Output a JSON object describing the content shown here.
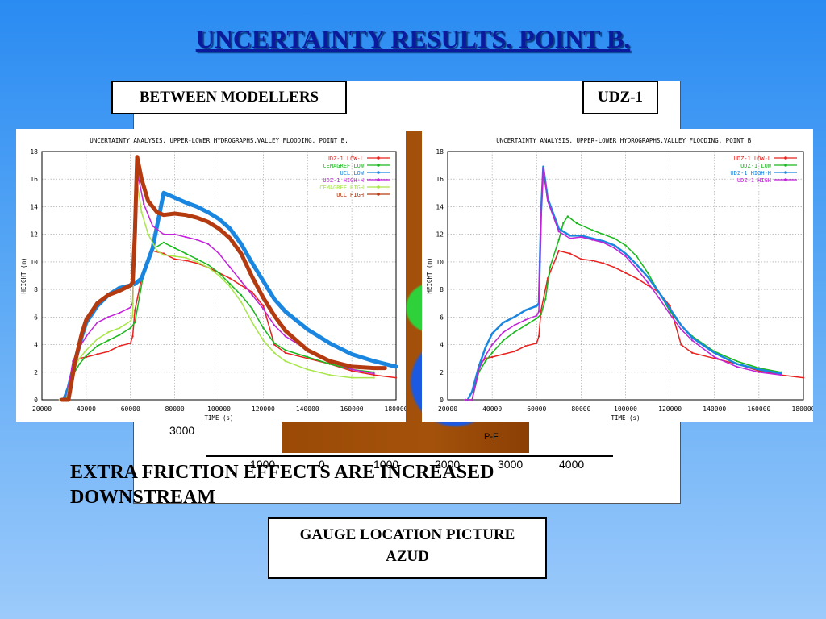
{
  "slide": {
    "title": "UNCERTAINTY RESULTS. POINT B.",
    "label_between": "BETWEEN MODELLERS",
    "label_udz": "UDZ-1",
    "note": "EXTRA FRICTION EFFECTS ARE INCREASED DOWNSTREAM",
    "gauge_label_line1": "GAUGE LOCATION PICTURE",
    "gauge_label_line2": "AZUD"
  },
  "map": {
    "y_label": "3000",
    "gauge_tag": "P-F",
    "x_ticks": [
      "1000",
      "0",
      "1000",
      "2000",
      "3000",
      "4000"
    ]
  },
  "colors": {
    "background_top": "#2a8bf2",
    "background_bottom": "#9ccafb",
    "title": "#0b1a9c"
  },
  "chart_data": [
    {
      "type": "line",
      "title": "UNCERTAINTY ANALYSIS. UPPER-LOWER HYDROGRAPHS.VALLEY FLOODING. POINT B.",
      "xlabel": "TIME (s)",
      "ylabel": "HEIGHT (m)",
      "xlim": [
        20000,
        180000
      ],
      "ylim": [
        0,
        18
      ],
      "xticks": [
        20000,
        40000,
        60000,
        80000,
        100000,
        120000,
        140000,
        160000,
        180000
      ],
      "yticks": [
        0,
        2,
        4,
        6,
        8,
        10,
        12,
        14,
        16,
        18
      ],
      "grid": true,
      "legend_position": "top-right",
      "series": [
        {
          "name": "UDZ-1 LOW-L",
          "color": "#e8211f",
          "width": 1.5,
          "x": [
            28000,
            31000,
            34000,
            37000,
            40000,
            45000,
            50000,
            55000,
            60000,
            61000,
            62000,
            65000,
            70000,
            75000,
            80000,
            85000,
            90000,
            95000,
            100000,
            105000,
            110000,
            115000,
            120000,
            125000,
            130000,
            140000,
            150000,
            160000,
            170000,
            180000
          ],
          "y": [
            0,
            0,
            2.5,
            3,
            3.1,
            3.3,
            3.5,
            3.9,
            4.1,
            4.6,
            6.5,
            8.8,
            10.8,
            10.6,
            10.2,
            10.1,
            9.9,
            9.6,
            9.2,
            8.8,
            8.3,
            7.8,
            6.8,
            4.0,
            3.4,
            3.0,
            2.6,
            2.1,
            1.8,
            1.6
          ]
        },
        {
          "name": "CEMAGREF LOW",
          "color": "#18b81c",
          "width": 1.5,
          "x": [
            28000,
            31000,
            34000,
            37000,
            40000,
            45000,
            50000,
            55000,
            60000,
            62000,
            64000,
            66000,
            70000,
            75000,
            80000,
            85000,
            90000,
            95000,
            100000,
            105000,
            110000,
            115000,
            120000,
            125000,
            130000,
            140000,
            150000,
            160000,
            170000
          ],
          "y": [
            0,
            0,
            1.8,
            2.6,
            3.2,
            3.9,
            4.3,
            4.7,
            5.2,
            5.6,
            7.4,
            9.2,
            10.9,
            11.4,
            11.0,
            10.6,
            10.2,
            9.8,
            9.2,
            8.4,
            7.6,
            6.6,
            5.2,
            4.1,
            3.6,
            3.1,
            2.6,
            2.2,
            2.0
          ]
        },
        {
          "name": "UCL LOW",
          "color": "#1a86e0",
          "width": 5,
          "x": [
            30000,
            32000,
            35000,
            38000,
            40000,
            45000,
            50000,
            55000,
            60000,
            62000,
            65000,
            70000,
            75000,
            78000,
            85000,
            90000,
            95000,
            100000,
            105000,
            110000,
            115000,
            120000,
            125000,
            130000,
            140000,
            150000,
            160000,
            170000,
            180000
          ],
          "y": [
            0,
            0.8,
            2.8,
            4.6,
            5.6,
            6.8,
            7.6,
            8.1,
            8.3,
            8.4,
            8.8,
            11.0,
            15.0,
            14.8,
            14.3,
            14.0,
            13.6,
            13.1,
            12.4,
            11.3,
            9.9,
            8.6,
            7.3,
            6.4,
            5.1,
            4.1,
            3.3,
            2.8,
            2.4
          ]
        },
        {
          "name": "UDZ-1 HIGH-H",
          "color": "#c023d8",
          "width": 1.5,
          "x": [
            28000,
            31000,
            34000,
            37000,
            40000,
            45000,
            50000,
            55000,
            60000,
            61000,
            62000,
            63000,
            66000,
            70000,
            75000,
            80000,
            85000,
            90000,
            95000,
            100000,
            105000,
            110000,
            115000,
            120000,
            125000,
            130000,
            140000,
            150000,
            160000,
            170000
          ],
          "y": [
            0,
            0,
            2.8,
            3.8,
            4.6,
            5.6,
            6.0,
            6.3,
            6.7,
            7.0,
            13.5,
            16.6,
            14.2,
            12.6,
            12.0,
            12.0,
            11.8,
            11.6,
            11.3,
            10.6,
            9.6,
            8.6,
            7.6,
            6.6,
            5.4,
            4.6,
            3.6,
            2.8,
            2.2,
            1.9
          ]
        },
        {
          "name": "CEMAGREF HIGH",
          "color": "#a8e64a",
          "width": 1.5,
          "x": [
            28000,
            31000,
            34000,
            37000,
            40000,
            45000,
            50000,
            55000,
            60000,
            61000,
            62000,
            63000,
            65000,
            68000,
            72000,
            75000,
            80000,
            85000,
            90000,
            95000,
            100000,
            105000,
            110000,
            115000,
            120000,
            125000,
            130000,
            140000,
            150000,
            160000,
            170000
          ],
          "y": [
            0,
            0,
            2.2,
            3.0,
            3.6,
            4.4,
            4.9,
            5.2,
            5.7,
            6.1,
            13.4,
            15.8,
            13.6,
            12.0,
            10.8,
            10.5,
            10.4,
            10.3,
            10.0,
            9.6,
            9.0,
            8.2,
            7.1,
            5.6,
            4.3,
            3.4,
            2.8,
            2.2,
            1.8,
            1.6,
            1.6
          ]
        },
        {
          "name": "UCL HIGH",
          "color": "#b43a10",
          "width": 5,
          "x": [
            29000,
            31000,
            32000,
            35000,
            38000,
            40000,
            45000,
            50000,
            55000,
            60000,
            61000,
            62000,
            63000,
            65000,
            68000,
            72000,
            75000,
            80000,
            85000,
            90000,
            95000,
            100000,
            105000,
            110000,
            115000,
            120000,
            125000,
            130000,
            140000,
            150000,
            160000,
            170000,
            175000
          ],
          "y": [
            0,
            0,
            0,
            2.8,
            4.8,
            5.8,
            7.0,
            7.6,
            7.9,
            8.3,
            8.5,
            12.0,
            17.6,
            16.0,
            14.4,
            13.6,
            13.4,
            13.5,
            13.4,
            13.2,
            12.9,
            12.4,
            11.7,
            10.6,
            8.9,
            7.4,
            6.1,
            5.0,
            3.6,
            2.8,
            2.4,
            2.3,
            2.3
          ]
        }
      ]
    },
    {
      "type": "line",
      "title": "UNCERTAINTY ANALYSIS. UPPER-LOWER HYDROGRAPHS.VALLEY FLOODING. POINT B.",
      "xlabel": "TIME (s)",
      "ylabel": "HEIGHT (m)",
      "xlim": [
        20000,
        180000
      ],
      "ylim": [
        0,
        18
      ],
      "xticks": [
        20000,
        40000,
        60000,
        80000,
        100000,
        120000,
        140000,
        160000,
        180000
      ],
      "yticks": [
        0,
        2,
        4,
        6,
        8,
        10,
        12,
        14,
        16,
        18
      ],
      "grid": true,
      "legend_position": "top-right",
      "series": [
        {
          "name": "UDZ-1 LOW-L",
          "color": "#e8211f",
          "width": 1.5,
          "x": [
            28000,
            31000,
            34000,
            37000,
            40000,
            45000,
            50000,
            55000,
            60000,
            61000,
            62000,
            65000,
            70000,
            75000,
            80000,
            85000,
            90000,
            95000,
            100000,
            105000,
            110000,
            115000,
            120000,
            125000,
            130000,
            140000,
            150000,
            160000,
            170000,
            180000
          ],
          "y": [
            0,
            0,
            2.5,
            3,
            3.1,
            3.3,
            3.5,
            3.9,
            4.1,
            4.6,
            6.5,
            8.8,
            10.8,
            10.6,
            10.2,
            10.1,
            9.9,
            9.6,
            9.2,
            8.8,
            8.3,
            7.8,
            6.8,
            4.0,
            3.4,
            3.0,
            2.6,
            2.1,
            1.8,
            1.6
          ]
        },
        {
          "name": "UDZ-1 LOW",
          "color": "#18b81c",
          "width": 1.5,
          "x": [
            28000,
            31000,
            34000,
            37000,
            40000,
            45000,
            50000,
            55000,
            60000,
            62000,
            64000,
            66000,
            70000,
            72000,
            74000,
            78000,
            85000,
            90000,
            95000,
            100000,
            105000,
            110000,
            115000,
            120000,
            125000,
            130000,
            140000,
            150000,
            160000,
            170000
          ],
          "y": [
            0,
            0,
            2.0,
            2.8,
            3.4,
            4.3,
            4.9,
            5.4,
            5.9,
            6.2,
            7.3,
            9.6,
            11.6,
            12.8,
            13.3,
            12.8,
            12.3,
            12.0,
            11.7,
            11.2,
            10.4,
            9.2,
            7.8,
            6.4,
            5.4,
            4.6,
            3.5,
            2.8,
            2.3,
            2.0
          ]
        },
        {
          "name": "UDZ-1 HIGH-H",
          "color": "#1a86e0",
          "width": 2.5,
          "x": [
            29000,
            31000,
            34000,
            37000,
            40000,
            45000,
            50000,
            55000,
            60000,
            61000,
            62000,
            63000,
            65000,
            70000,
            75000,
            80000,
            85000,
            90000,
            95000,
            100000,
            105000,
            110000,
            115000,
            120000,
            125000,
            130000,
            140000,
            150000,
            160000,
            170000
          ],
          "y": [
            0,
            0.6,
            2.4,
            3.8,
            4.8,
            5.6,
            6.0,
            6.5,
            6.8,
            7.0,
            13.6,
            16.9,
            14.6,
            12.4,
            11.9,
            11.9,
            11.7,
            11.5,
            11.2,
            10.6,
            9.8,
            8.9,
            7.8,
            6.6,
            5.4,
            4.5,
            3.4,
            2.6,
            2.2,
            1.9
          ]
        },
        {
          "name": "UDZ-1 HIGH",
          "color": "#c023d8",
          "width": 1.5,
          "x": [
            28000,
            31000,
            34000,
            37000,
            40000,
            45000,
            50000,
            55000,
            60000,
            61000,
            62000,
            63000,
            65000,
            70000,
            75000,
            80000,
            85000,
            90000,
            95000,
            100000,
            105000,
            110000,
            115000,
            120000,
            125000,
            130000,
            140000,
            150000,
            160000,
            170000
          ],
          "y": [
            0,
            0,
            2.2,
            3.2,
            4.0,
            4.9,
            5.4,
            5.8,
            6.1,
            6.4,
            13.4,
            16.8,
            14.4,
            12.2,
            11.7,
            11.8,
            11.6,
            11.4,
            11.0,
            10.4,
            9.5,
            8.5,
            7.4,
            6.2,
            5.1,
            4.3,
            3.1,
            2.4,
            2.0,
            1.8
          ]
        }
      ]
    }
  ]
}
